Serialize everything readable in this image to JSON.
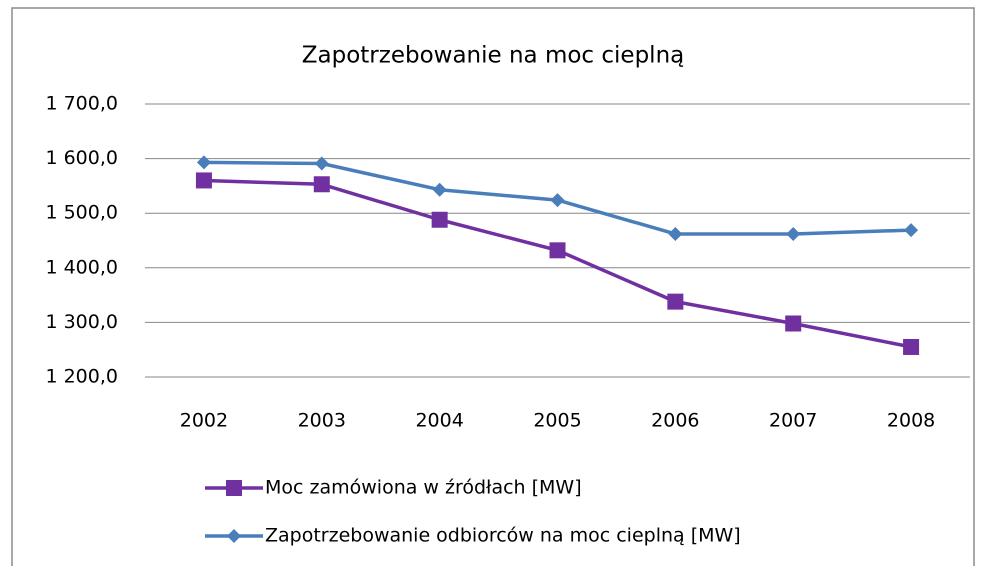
{
  "chart_data": {
    "type": "line",
    "title": "Zapotrzebowanie na moc cieplną",
    "categories": [
      "2002",
      "2003",
      "2004",
      "2005",
      "2006",
      "2007",
      "2008"
    ],
    "series": [
      {
        "name": "Moc zamówiona w źródłach [MW]",
        "color": "#7030a0",
        "marker": "square",
        "values": [
          1560,
          1553,
          1488,
          1432,
          1338,
          1298,
          1255
        ]
      },
      {
        "name": "Zapotrzebowanie odbiorców na moc cieplną [MW]",
        "color": "#4a7ebb",
        "marker": "diamond",
        "values": [
          1593,
          1591,
          1543,
          1524,
          1462,
          1462,
          1469
        ]
      }
    ],
    "ylim": [
      1200,
      1700
    ],
    "yticks": [
      {
        "value": 1200,
        "label": "1 200,0"
      },
      {
        "value": 1300,
        "label": "1 300,0"
      },
      {
        "value": 1400,
        "label": "1 400,0"
      },
      {
        "value": 1500,
        "label": "1 500,0"
      },
      {
        "value": 1600,
        "label": "1 600,0"
      },
      {
        "value": 1700,
        "label": "1 700,0"
      }
    ],
    "grid": true,
    "legend": "bottom"
  }
}
